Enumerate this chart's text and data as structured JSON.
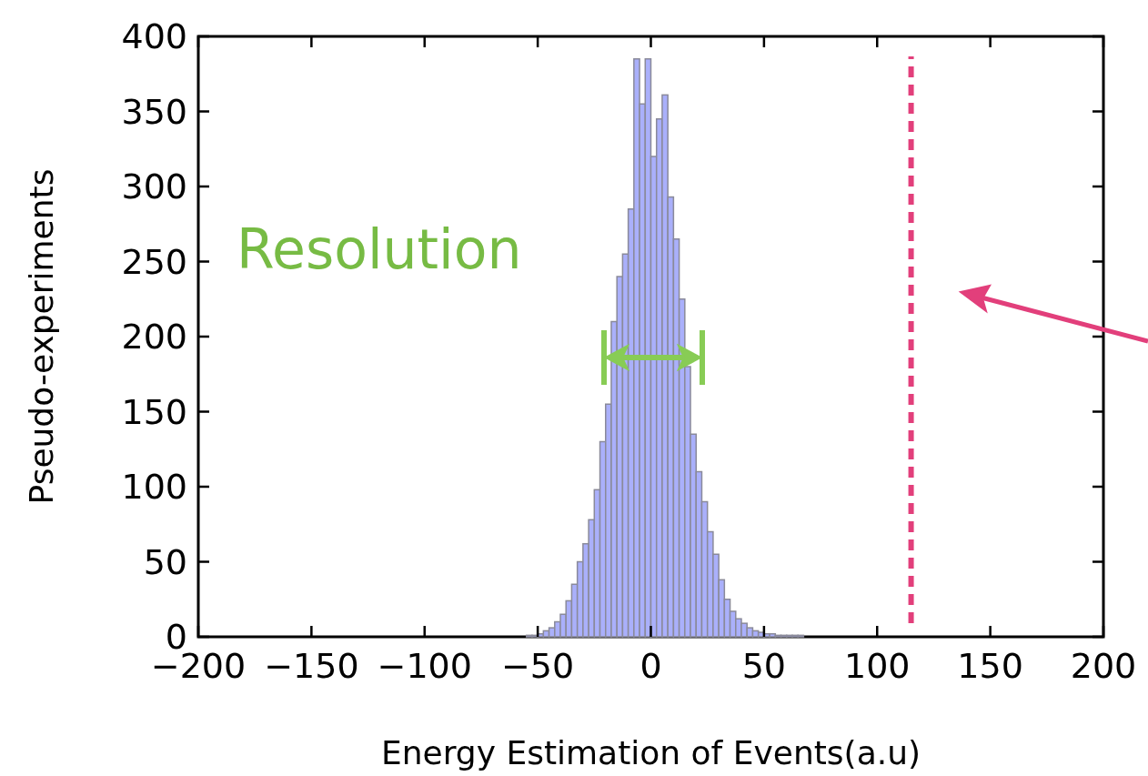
{
  "chart_data": {
    "type": "histogram",
    "xlabel": "Energy Estimation of Events(a.u)",
    "ylabel": "Pseudo-experiments",
    "bins": [
      -55,
      -52.5,
      -50,
      -47.5,
      -45,
      -42.5,
      -40,
      -37.5,
      -35,
      -32.5,
      -30,
      -27.5,
      -25,
      -22.5,
      -20,
      -17.5,
      -15,
      -12.5,
      -10,
      -7.5,
      -5,
      -2.5,
      0,
      2.5,
      5,
      7.5,
      10,
      12.5,
      15,
      17.5,
      20,
      22.5,
      25,
      27.5,
      30,
      32.5,
      35,
      37.5,
      40,
      42.5,
      45,
      47.5,
      50,
      52.5,
      55,
      57.5,
      60,
      62.5,
      65,
      67.5
    ],
    "values": [
      1,
      1,
      2,
      4,
      6,
      10,
      15,
      24,
      35,
      50,
      62,
      78,
      98,
      130,
      155,
      210,
      240,
      255,
      285,
      385,
      355,
      385,
      320,
      345,
      361,
      293,
      265,
      225,
      180,
      135,
      110,
      90,
      70,
      55,
      38,
      25,
      17,
      12,
      9,
      6,
      4,
      3,
      2,
      2,
      1,
      1,
      1,
      1,
      1
    ],
    "color": "#aab0fb",
    "xlim": [
      -200,
      200
    ],
    "xticks": [
      -200,
      -150,
      -100,
      -50,
      0,
      50,
      100,
      150,
      200
    ],
    "ylim": [
      0,
      400
    ],
    "yticks": [
      0,
      50,
      100,
      150,
      200,
      250,
      300,
      350,
      400
    ],
    "ref_lines": [
      {
        "axis": "x",
        "value": 115,
        "color": "#e23f7b",
        "line_style": "dashed"
      }
    ],
    "annotations": [
      "Resolution"
    ]
  }
}
